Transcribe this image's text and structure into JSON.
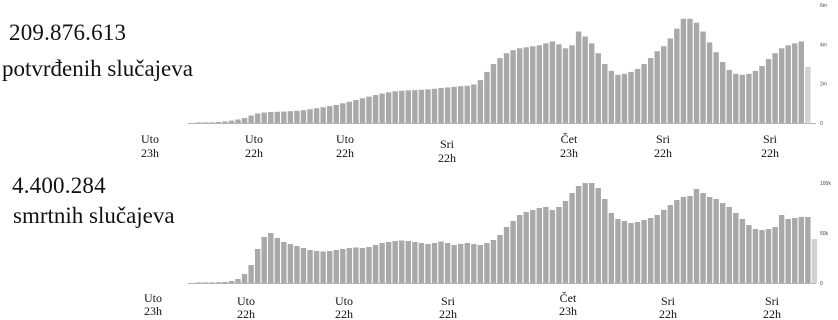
{
  "colors": {
    "bar": "#a9a9a9",
    "bar_last": "#d3d3d3",
    "axis": "#b5b5b5"
  },
  "blocks": {
    "cases": {
      "count": "209.876.613",
      "label": "potvrđenih slučajeva"
    },
    "deaths": {
      "count": "4.400.284",
      "label": "smrtnih slučajeva"
    }
  },
  "chart_data": [
    {
      "type": "bar",
      "title": "potvrđenih slučajeva",
      "xlabel": "",
      "ylabel": "",
      "ylim": [
        0,
        6000000
      ],
      "yticks": [
        "0",
        "2m",
        "4m",
        "6m"
      ],
      "x_tick_labels": [
        [
          "Uto",
          "23h"
        ],
        [
          "Uto",
          "22h"
        ],
        [
          "Uto",
          "22h"
        ],
        [
          "Sri",
          "22h"
        ],
        [
          "Čet",
          "23h"
        ],
        [
          "Sri",
          "22h"
        ],
        [
          "Sri",
          "22h"
        ]
      ],
      "grid": false,
      "values": [
        10000,
        20000,
        30000,
        50000,
        80000,
        120000,
        180000,
        250000,
        380000,
        480000,
        530000,
        560000,
        570000,
        580000,
        600000,
        620000,
        650000,
        700000,
        750000,
        800000,
        860000,
        920000,
        1000000,
        1080000,
        1170000,
        1260000,
        1340000,
        1420000,
        1500000,
        1560000,
        1610000,
        1640000,
        1660000,
        1670000,
        1690000,
        1710000,
        1740000,
        1780000,
        1810000,
        1840000,
        1870000,
        1890000,
        1960000,
        2180000,
        2600000,
        3000000,
        3300000,
        3550000,
        3700000,
        3800000,
        3850000,
        3900000,
        3950000,
        4050000,
        4150000,
        4000000,
        3800000,
        3950000,
        4650000,
        4400000,
        4050000,
        3550000,
        3000000,
        2650000,
        2450000,
        2500000,
        2600000,
        2750000,
        3000000,
        3300000,
        3650000,
        3900000,
        4300000,
        4800000,
        5300000,
        5300000,
        5100000,
        4650000,
        4100000,
        3600000,
        3100000,
        2700000,
        2500000,
        2450000,
        2500000,
        2650000,
        2900000,
        3250000,
        3550000,
        3800000,
        3950000,
        4050000,
        4150000,
        2850000
      ]
    },
    {
      "type": "bar",
      "title": "smrtnih slučajeva",
      "xlabel": "",
      "ylabel": "",
      "ylim": [
        0,
        100000
      ],
      "yticks": [
        "0",
        "50k",
        "100k"
      ],
      "x_tick_labels": [
        [
          "Uto",
          "23h"
        ],
        [
          "Uto",
          "22h"
        ],
        [
          "Uto",
          "22h"
        ],
        [
          "Sri",
          "22h"
        ],
        [
          "Čet",
          "23h"
        ],
        [
          "Sri",
          "22h"
        ],
        [
          "Sri",
          "22h"
        ]
      ],
      "grid": false,
      "values": [
        200,
        400,
        600,
        800,
        1000,
        2000,
        4000,
        9000,
        18000,
        34000,
        46000,
        50000,
        45000,
        41000,
        39000,
        37000,
        35000,
        33000,
        32000,
        31500,
        32000,
        33000,
        34000,
        35000,
        35500,
        35000,
        36000,
        38000,
        40000,
        41000,
        42000,
        42500,
        42000,
        41000,
        40000,
        39000,
        40000,
        41500,
        40000,
        38000,
        39000,
        40000,
        39000,
        38000,
        40000,
        43000,
        48000,
        56000,
        62000,
        68000,
        71000,
        73000,
        75000,
        76000,
        73000,
        76000,
        82000,
        90000,
        97000,
        100000,
        100000,
        95000,
        84000,
        70000,
        64000,
        62000,
        60000,
        61000,
        63000,
        65000,
        68000,
        73000,
        78000,
        83000,
        86000,
        87000,
        94000,
        90000,
        86000,
        84000,
        80000,
        76000,
        70000,
        64000,
        58000,
        54000,
        53000,
        54000,
        56000,
        68000,
        64000,
        65000,
        66000,
        66000,
        44000
      ]
    }
  ]
}
